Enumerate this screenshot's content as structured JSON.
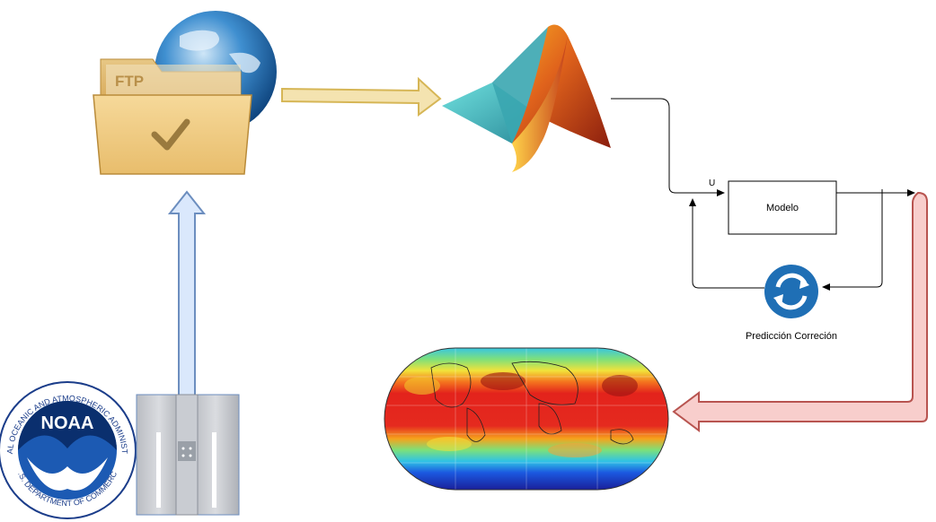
{
  "diagram": {
    "ftp_folder": {
      "label": "FTP"
    },
    "noaa_logo": {
      "acronym": "NOAA",
      "ring_text": "NATIONAL OCEANIC AND ATMOSPHERIC ADMINISTRATION",
      "ring_bottom_text": "U.S. DEPARTMENT OF COMMERCE"
    },
    "control_loop": {
      "input_label": "U",
      "model_label": "Modelo",
      "correction_label": "Predicción Correción"
    },
    "colors": {
      "flow_arrow_gold": "#f4e3b0",
      "flow_arrow_gold_stroke": "#d6b656",
      "flow_arrow_blue": "#dae8fc",
      "flow_arrow_blue_stroke": "#6c8ebf",
      "flow_arrow_red": "#f8cecc",
      "flow_arrow_red_stroke": "#b85450",
      "refresh_icon": "#1f6fb5"
    }
  }
}
